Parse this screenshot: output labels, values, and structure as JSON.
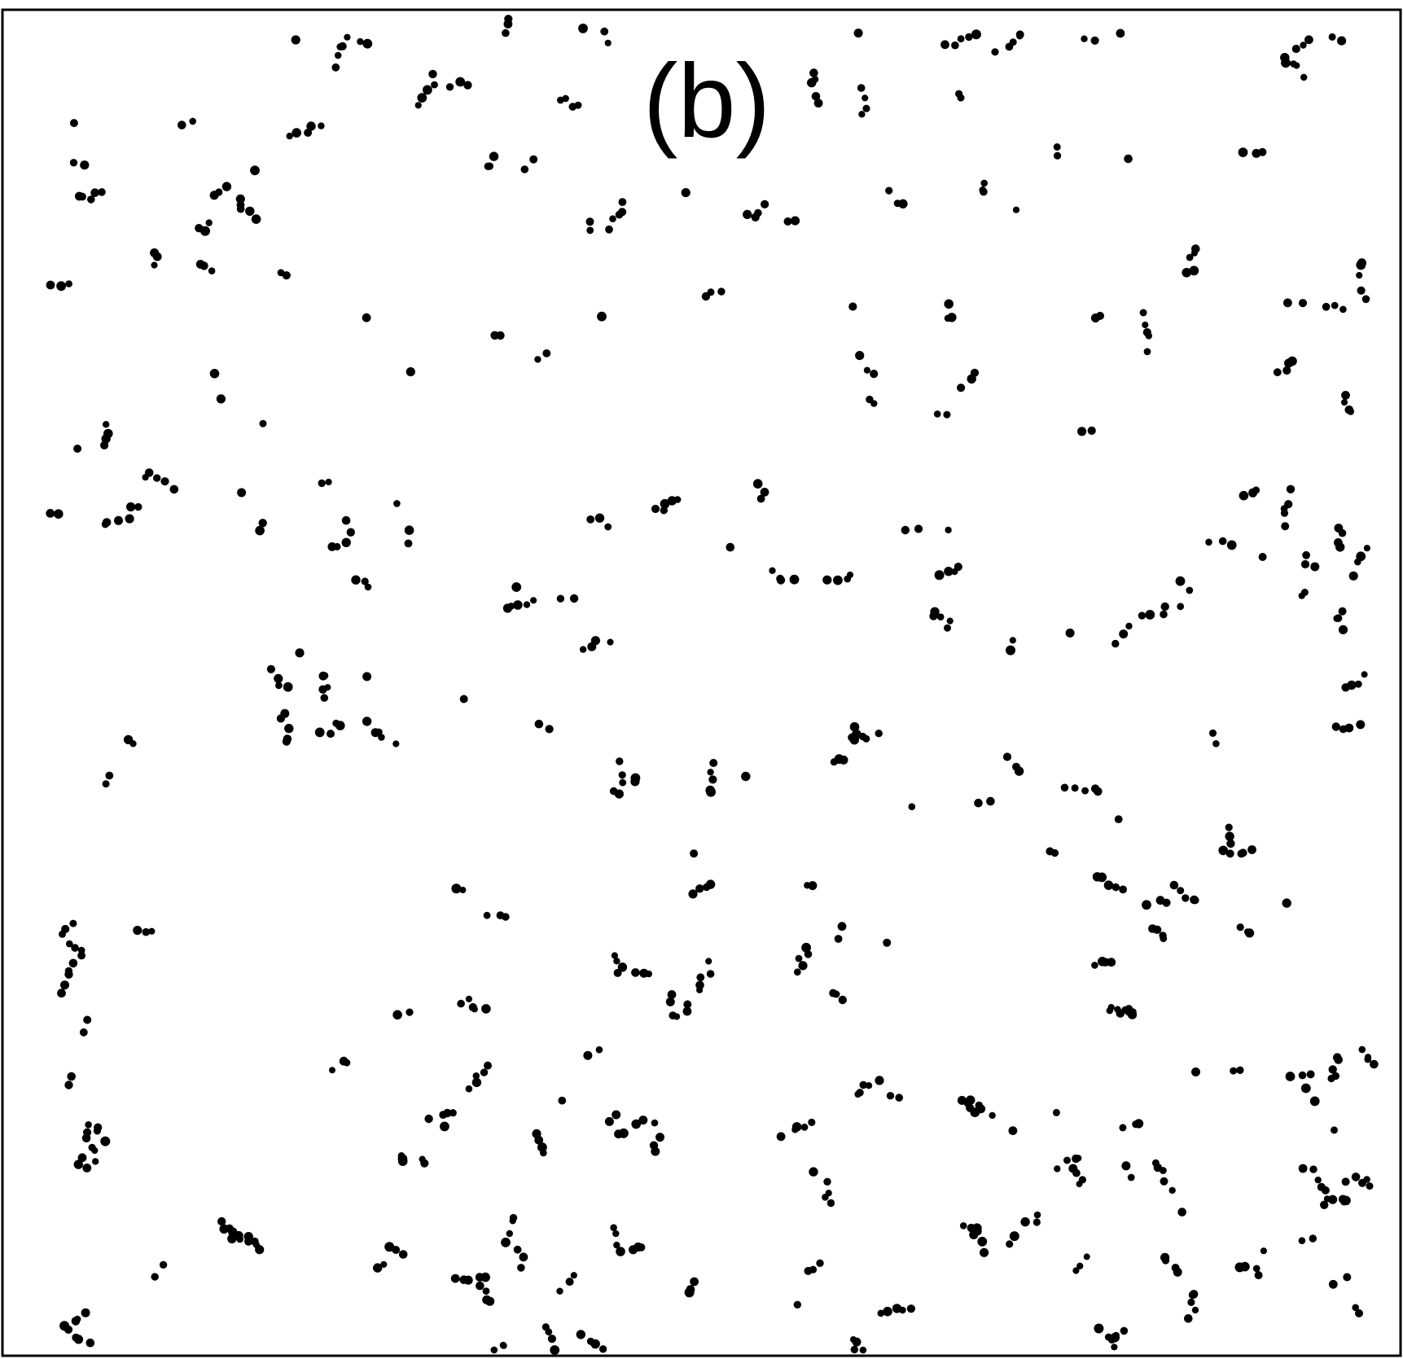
{
  "figure": {
    "panel_label": "(b)",
    "colors": {
      "background": "#ffffff",
      "particle": "#000000",
      "border": "#000000"
    }
  }
}
